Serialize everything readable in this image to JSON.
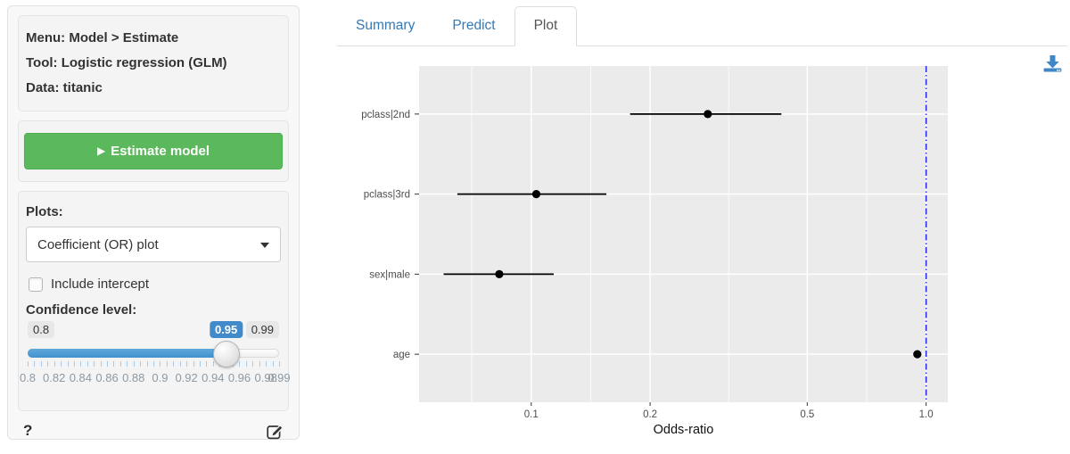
{
  "sidebar": {
    "model_info": {
      "menu": "Menu: Model > Estimate",
      "tool": "Tool: Logistic regression (GLM)",
      "data": "Data: titanic"
    },
    "play_icon": "▶",
    "estimate_button_label": "Estimate model",
    "plots_label": "Plots:",
    "plots_selected": "Coefficient (OR) plot",
    "include_intercept_label": "Include intercept",
    "include_intercept_checked": false,
    "confidence_label": "Confidence level:",
    "slider": {
      "min": 0.8,
      "max": 0.99,
      "value": 0.95,
      "min_label": "0.8",
      "value_label": "0.95",
      "max_label": "0.99",
      "grid_labels": [
        "0.8",
        "0.82",
        "0.84",
        "0.86",
        "0.88",
        "0.9",
        "0.92",
        "0.94",
        "0.96",
        "0.98",
        "0.99"
      ],
      "tick_step": 0.005,
      "accent": "#428bca"
    },
    "help_label": "?"
  },
  "tabs": [
    {
      "label": "Summary",
      "active": false
    },
    {
      "label": "Predict",
      "active": false
    },
    {
      "label": "Plot",
      "active": true
    }
  ],
  "icons": {
    "download": "download-icon",
    "edit": "pencil-square-icon",
    "caret": "caret-down-icon",
    "play": "play-icon"
  },
  "chart_data": {
    "type": "scatter",
    "subtype": "coefficient-odds-ratio-plot",
    "title": "",
    "xlabel": "Odds-ratio",
    "ylabel": "",
    "x_scale": "log10",
    "categories": [
      "pclass|2nd",
      "pclass|3rd",
      "sex|male",
      "age"
    ],
    "or_values": [
      0.28,
      0.103,
      0.083,
      0.95
    ],
    "ci_low": [
      0.178,
      0.065,
      0.06,
      0.935
    ],
    "ci_high": [
      0.43,
      0.155,
      0.114,
      0.965
    ],
    "confidence_level": 0.95,
    "x_ticks": [
      0.1,
      0.2,
      0.5,
      1.0
    ],
    "x_tick_labels": [
      "0.1",
      "0.2",
      "0.5",
      "1.0"
    ],
    "x_minor_ticks": [
      0.0707,
      0.1414,
      0.3162,
      0.7071
    ],
    "xlim": [
      0.052,
      1.135
    ],
    "ref_line": 1.0,
    "grid": true,
    "legend": "none",
    "colors": {
      "panel": "#EBEBEB",
      "grid": "#FFFFFF",
      "point": "#000000",
      "ref_line": "#2525EE",
      "axis_text": "#4D4D4D",
      "axis_title": "#111111"
    }
  }
}
